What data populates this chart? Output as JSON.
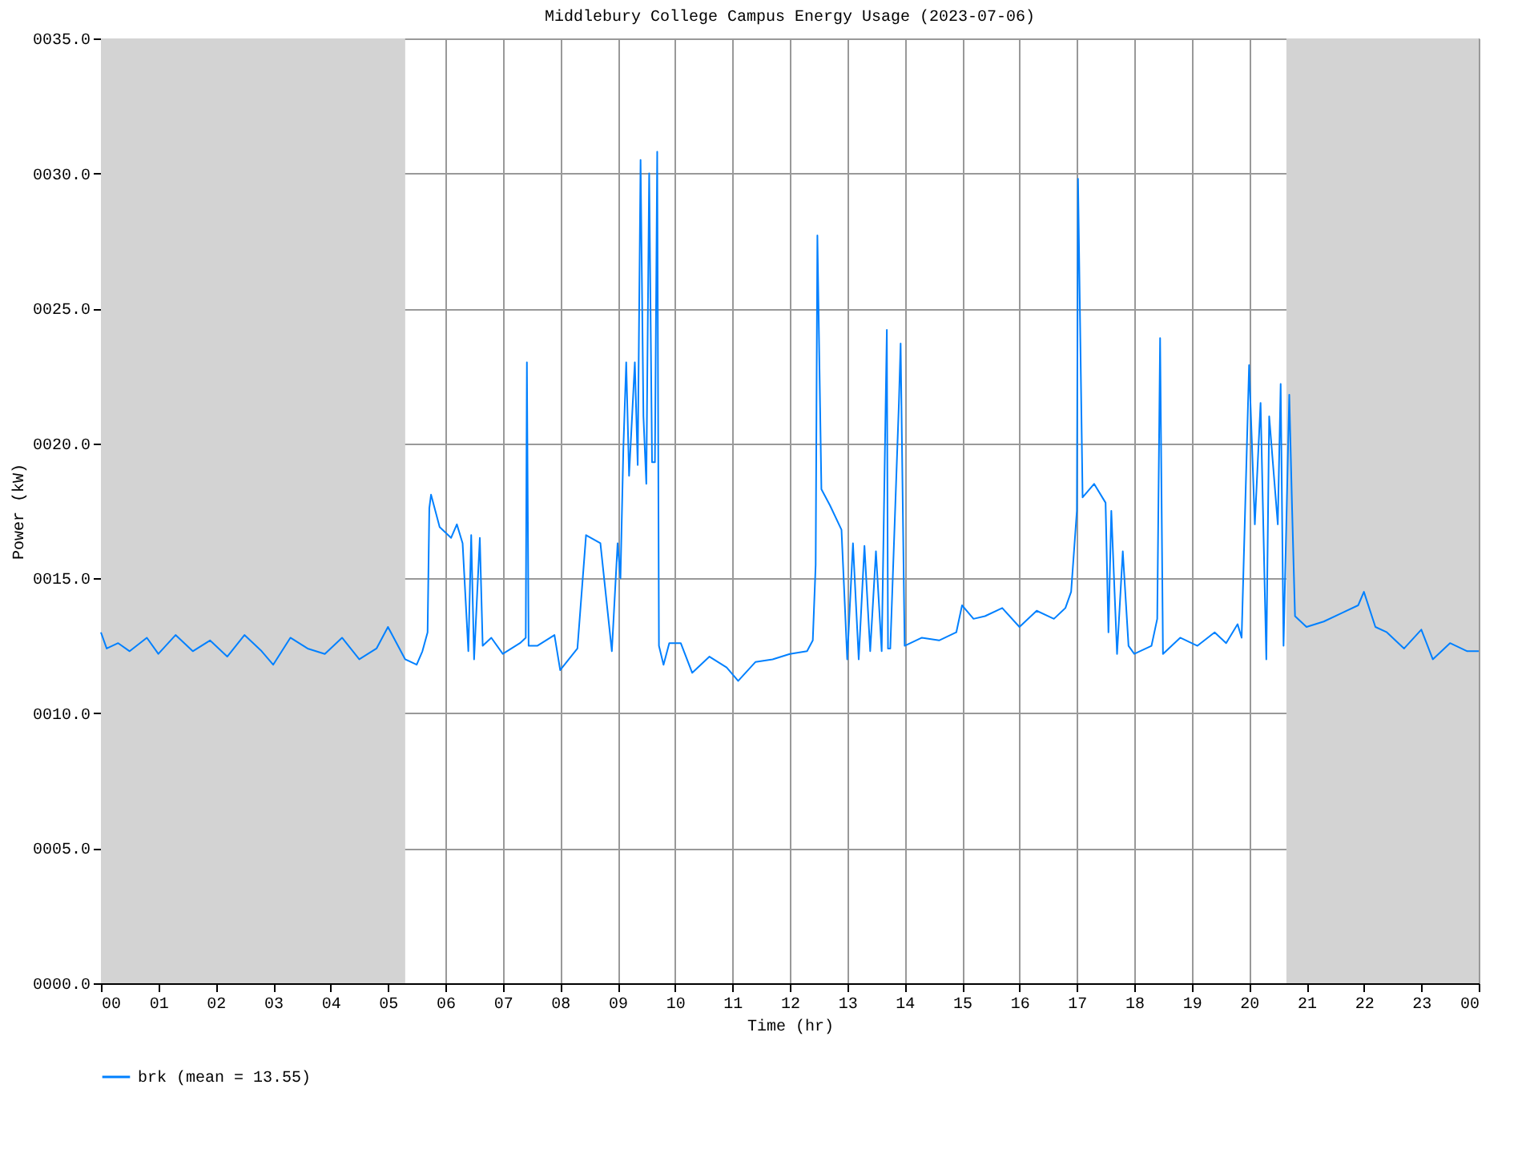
{
  "chart_data": {
    "type": "line",
    "title": "Middlebury College Campus Energy Usage (2023-07-06)",
    "xlabel": "Time (hr)",
    "ylabel": "Power (kW)",
    "xlim": [
      0,
      24
    ],
    "ylim": [
      0,
      35
    ],
    "xticks": [
      {
        "value": 0,
        "label": "00"
      },
      {
        "value": 1,
        "label": "01"
      },
      {
        "value": 2,
        "label": "02"
      },
      {
        "value": 3,
        "label": "03"
      },
      {
        "value": 4,
        "label": "04"
      },
      {
        "value": 5,
        "label": "05"
      },
      {
        "value": 6,
        "label": "06"
      },
      {
        "value": 7,
        "label": "07"
      },
      {
        "value": 8,
        "label": "08"
      },
      {
        "value": 9,
        "label": "09"
      },
      {
        "value": 10,
        "label": "10"
      },
      {
        "value": 11,
        "label": "11"
      },
      {
        "value": 12,
        "label": "12"
      },
      {
        "value": 13,
        "label": "13"
      },
      {
        "value": 14,
        "label": "14"
      },
      {
        "value": 15,
        "label": "15"
      },
      {
        "value": 16,
        "label": "16"
      },
      {
        "value": 17,
        "label": "17"
      },
      {
        "value": 18,
        "label": "18"
      },
      {
        "value": 19,
        "label": "19"
      },
      {
        "value": 20,
        "label": "20"
      },
      {
        "value": 21,
        "label": "21"
      },
      {
        "value": 22,
        "label": "22"
      },
      {
        "value": 23,
        "label": "23"
      },
      {
        "value": 24,
        "label": "00"
      }
    ],
    "yticks": [
      {
        "value": 0,
        "label": "0000.0"
      },
      {
        "value": 5,
        "label": "0005.0"
      },
      {
        "value": 10,
        "label": "0010.0"
      },
      {
        "value": 15,
        "label": "0015.0"
      },
      {
        "value": 20,
        "label": "0020.0"
      },
      {
        "value": 25,
        "label": "0025.0"
      },
      {
        "value": 30,
        "label": "0030.0"
      },
      {
        "value": 35,
        "label": "0035.0"
      }
    ],
    "grid": true,
    "legend": "bottom",
    "marker": "none",
    "line_style": "solid",
    "bands": [
      {
        "axis": "x",
        "from": 0,
        "to": 5.3,
        "color": "#d3d3d3"
      },
      {
        "axis": "x",
        "from": 20.65,
        "to": 24,
        "color": "#d3d3d3"
      }
    ],
    "series": [
      {
        "name": "brk (mean = 13.55)",
        "color": "#0080ff",
        "x": [
          0.0,
          0.1,
          0.3,
          0.5,
          0.8,
          1.0,
          1.3,
          1.6,
          1.9,
          2.2,
          2.5,
          2.8,
          3.0,
          3.3,
          3.6,
          3.9,
          4.2,
          4.5,
          4.8,
          5.0,
          5.3,
          5.5,
          5.6,
          5.69,
          5.72,
          5.75,
          5.9,
          6.1,
          6.2,
          6.3,
          6.4,
          6.45,
          6.5,
          6.6,
          6.65,
          6.8,
          7.0,
          7.3,
          7.4,
          7.42,
          7.45,
          7.6,
          7.9,
          8.0,
          8.3,
          8.45,
          8.7,
          8.9,
          9.0,
          9.05,
          9.1,
          9.15,
          9.2,
          9.3,
          9.35,
          9.4,
          9.45,
          9.5,
          9.55,
          9.6,
          9.65,
          9.69,
          9.72,
          9.8,
          9.9,
          10.1,
          10.3,
          10.6,
          10.9,
          11.1,
          11.4,
          11.7,
          12.0,
          12.3,
          12.4,
          12.45,
          12.48,
          12.55,
          12.7,
          12.9,
          13.0,
          13.1,
          13.2,
          13.3,
          13.4,
          13.5,
          13.6,
          13.69,
          13.71,
          13.75,
          13.9,
          13.93,
          14.0,
          14.3,
          14.6,
          14.9,
          15.0,
          15.2,
          15.4,
          15.7,
          16.0,
          16.3,
          16.6,
          16.8,
          16.9,
          17.0,
          17.02,
          17.1,
          17.3,
          17.5,
          17.55,
          17.6,
          17.7,
          17.8,
          17.9,
          18.0,
          18.3,
          18.4,
          18.45,
          18.5,
          18.8,
          19.1,
          19.4,
          19.6,
          19.8,
          19.87,
          20.0,
          20.1,
          20.2,
          20.3,
          20.35,
          20.5,
          20.55,
          20.6,
          20.7,
          20.75,
          20.8,
          21.0,
          21.3,
          21.6,
          21.9,
          22.0,
          22.2,
          22.4,
          22.7,
          23.0,
          23.2,
          23.5,
          23.8,
          24.0
        ],
        "values": [
          13.0,
          12.4,
          12.6,
          12.3,
          12.8,
          12.2,
          12.9,
          12.3,
          12.7,
          12.1,
          12.9,
          12.3,
          11.8,
          12.8,
          12.4,
          12.2,
          12.8,
          12.0,
          12.4,
          13.2,
          12.0,
          11.8,
          12.3,
          13.0,
          17.6,
          18.1,
          16.9,
          16.5,
          17.0,
          16.3,
          12.3,
          16.6,
          12.0,
          16.5,
          12.5,
          12.8,
          12.2,
          12.6,
          12.8,
          23.0,
          12.5,
          12.5,
          12.9,
          11.6,
          12.4,
          16.6,
          16.3,
          12.3,
          16.3,
          15.0,
          19.8,
          23.0,
          18.8,
          23.0,
          19.2,
          30.5,
          21.0,
          18.5,
          30.0,
          19.3,
          19.3,
          30.8,
          12.5,
          11.8,
          12.6,
          12.6,
          11.5,
          12.1,
          11.7,
          11.2,
          11.9,
          12.0,
          12.2,
          12.3,
          12.7,
          15.5,
          27.7,
          18.3,
          17.7,
          16.8,
          12.0,
          16.3,
          12.0,
          16.2,
          12.3,
          16.0,
          12.3,
          24.2,
          12.4,
          12.4,
          21.5,
          23.7,
          12.5,
          12.8,
          12.7,
          13.0,
          14.0,
          13.5,
          13.6,
          13.9,
          13.2,
          13.8,
          13.5,
          13.9,
          14.5,
          17.5,
          29.8,
          18.0,
          18.5,
          17.8,
          13.0,
          17.5,
          12.2,
          16.0,
          12.5,
          12.2,
          12.5,
          13.5,
          23.9,
          12.2,
          12.8,
          12.5,
          13.0,
          12.6,
          13.3,
          12.8,
          22.9,
          17.0,
          21.5,
          12.0,
          21.0,
          17.0,
          22.2,
          12.5,
          21.8,
          17.5,
          13.6,
          13.2,
          13.4,
          13.7,
          14.0,
          14.5,
          13.2,
          13.0,
          12.4,
          13.1,
          12.0,
          12.6,
          12.3,
          12.3
        ]
      }
    ]
  }
}
